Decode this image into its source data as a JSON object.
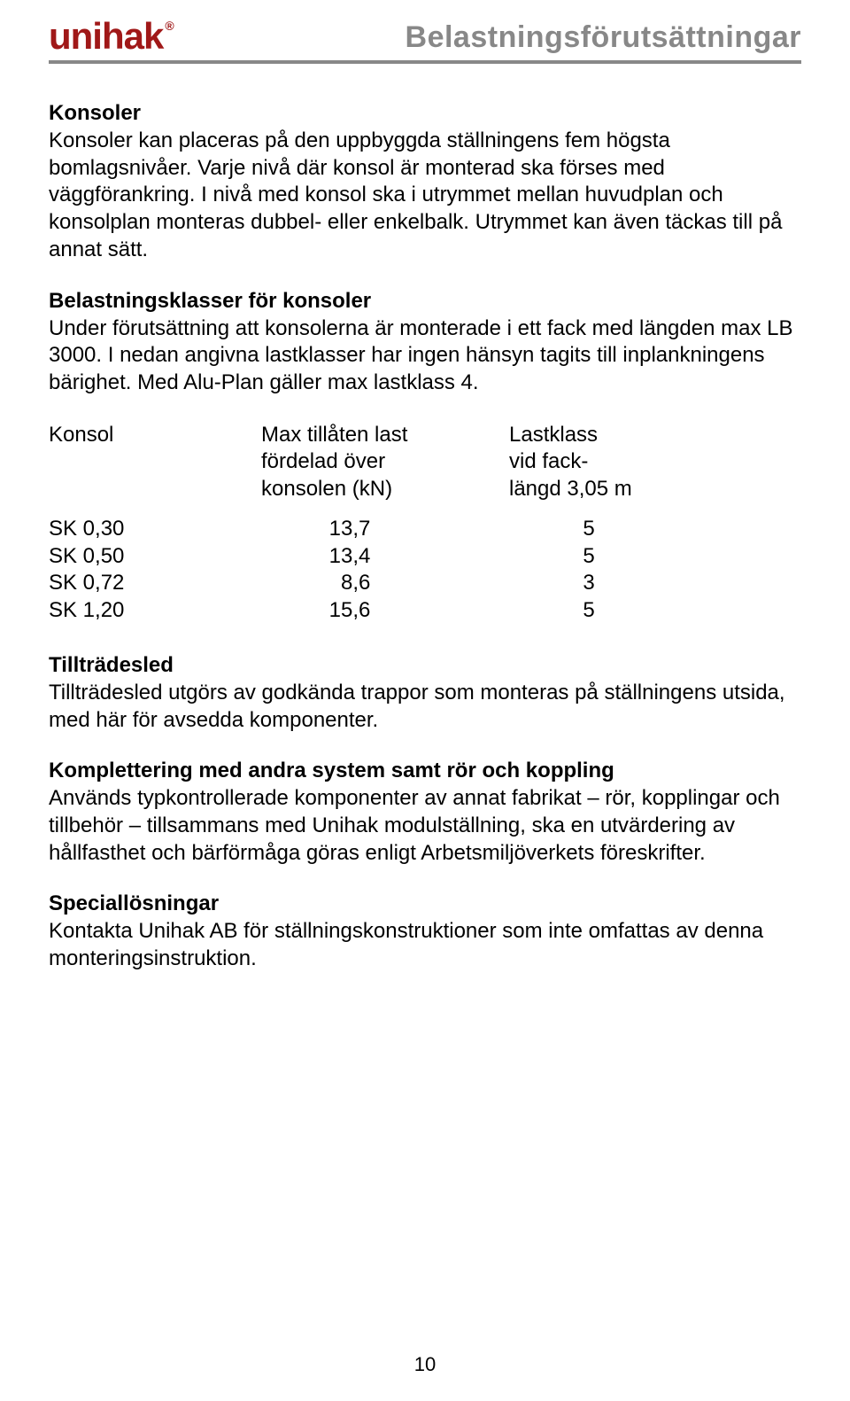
{
  "header": {
    "logo_text": "unihak",
    "logo_registered": "®",
    "page_title": "Belastningsförutsättningar",
    "logo_color": "#a01818",
    "title_color": "#888888",
    "rule_color": "#888888"
  },
  "sections": {
    "konsoler": {
      "heading": "Konsoler",
      "text": "Konsoler kan placeras på den uppbyggda ställningens fem högsta bomlagsnivåer. Varje nivå där konsol är monterad ska förses med väggförankring. I nivå med konsol ska i utrymmet mellan huvudplan och konsolplan monteras dubbel- eller enkelbalk. Utrymmet kan även täckas till på annat sätt."
    },
    "belastningsklasser": {
      "heading": "Belastningsklasser för konsoler",
      "text": "Under förutsättning att konsolerna är monterade i ett fack med längden max LB 3000. I nedan angivna lastklasser har ingen hänsyn tagits till inplankningens bärighet. Med Alu-Plan gäller max lastklass 4."
    },
    "tilltradesled": {
      "heading": "Tillträdesled",
      "text": "Tillträdesled utgörs av godkända trappor som monteras på ställningens utsida, med här för avsedda komponenter."
    },
    "komplettering": {
      "heading": "Komplettering med andra system samt rör och koppling",
      "text": "Används typkontrollerade komponenter av annat fabrikat – rör, kopplingar och tillbehör – tillsammans med Unihak modulställning, ska en utvärdering av hållfasthet och bärförmåga göras enligt Arbetsmiljöverkets föreskrifter."
    },
    "speciallosningar": {
      "heading": "Speciallösningar",
      "text": "Kontakta Unihak AB för ställningskonstruktioner som inte omfattas av denna monteringsinstruktion."
    }
  },
  "table": {
    "header": {
      "col1": "Konsol",
      "col2_line1": "Max tillåten last",
      "col2_line2": "fördelad över",
      "col2_line3": "konsolen (kN)",
      "col3_line1": "Lastklass",
      "col3_line2": "vid fack-",
      "col3_line3": "längd 3,05 m"
    },
    "rows": [
      {
        "konsol": "SK 0,30",
        "max_last": "13,7",
        "lastklass": "5"
      },
      {
        "konsol": "SK 0,50",
        "max_last": "13,4",
        "lastklass": "5"
      },
      {
        "konsol": "SK 0,72",
        "max_last": "  8,6",
        "lastklass": "3"
      },
      {
        "konsol": "SK 1,20",
        "max_last": "15,6",
        "lastklass": "5"
      }
    ]
  },
  "page_number": "10",
  "typography": {
    "body_fontsize": 24,
    "heading_fontsize": 24,
    "title_fontsize": 34,
    "logo_fontsize": 42
  },
  "colors": {
    "background": "#ffffff",
    "text": "#000000"
  }
}
